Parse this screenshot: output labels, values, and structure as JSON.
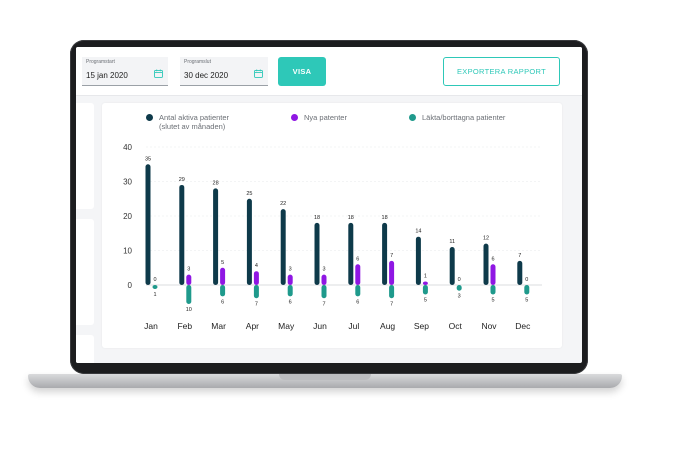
{
  "filters": {
    "start": {
      "label": "Programstart",
      "value": "15 jan 2020"
    },
    "end": {
      "label": "Programslut",
      "value": "30 dec 2020"
    },
    "show_label": "VISA",
    "export_label": "EXPORTERA RAPPORT"
  },
  "colors": {
    "active": "#0e3a4a",
    "new": "#8f17e3",
    "cured": "#1f9a8c",
    "accent": "#2ec8b8"
  },
  "chart_data": {
    "type": "bar",
    "categories": [
      "Jan",
      "Feb",
      "Mar",
      "Apr",
      "May",
      "Jun",
      "Jul",
      "Aug",
      "Sep",
      "Oct",
      "Nov",
      "Dec"
    ],
    "series": [
      {
        "name": "Antal aktiva patienter\n(slutet av månaden)",
        "values": [
          35,
          29,
          28,
          25,
          22,
          18,
          18,
          18,
          14,
          11,
          12,
          7
        ]
      },
      {
        "name": "Nya patenter",
        "values": [
          0,
          3,
          5,
          4,
          3,
          3,
          6,
          7,
          1,
          0,
          6,
          0
        ]
      },
      {
        "name": "Läkta/borttagna patienter",
        "values": [
          1,
          10,
          6,
          7,
          6,
          7,
          6,
          7,
          5,
          3,
          5,
          5
        ]
      }
    ],
    "ylim": [
      0,
      40
    ],
    "yticks": [
      0,
      10,
      20,
      30,
      40
    ],
    "grid": true,
    "legend": "top"
  }
}
